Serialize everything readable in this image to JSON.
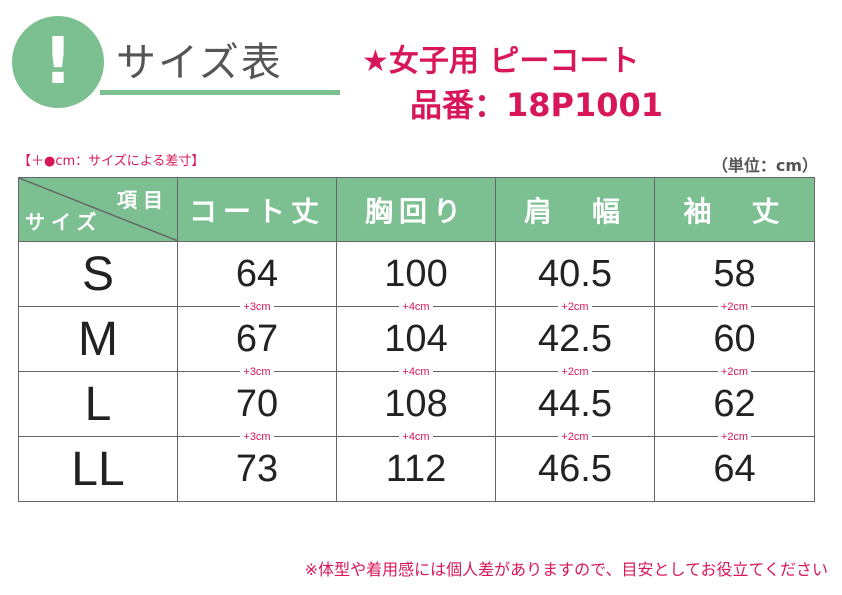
{
  "badge": "!",
  "title": "サイズ表",
  "product": "★女子用 ピーコート",
  "code": "品番：18P1001",
  "note_top": "【＋●cm：サイズによる差寸】",
  "unit": "（単位：cm）",
  "header": {
    "corner_item": "項目",
    "corner_size": "サイズ",
    "cols": [
      "コート丈",
      "胸回り",
      "肩　幅",
      "袖　丈"
    ]
  },
  "rows": [
    {
      "size": "S",
      "values": [
        "64",
        "100",
        "40.5",
        "58"
      ],
      "diffs": [
        "+3cm",
        "+4cm",
        "+2cm",
        "+2cm"
      ]
    },
    {
      "size": "M",
      "values": [
        "67",
        "104",
        "42.5",
        "60"
      ],
      "diffs": [
        "+3cm",
        "+4cm",
        "+2cm",
        "+2cm"
      ]
    },
    {
      "size": "L",
      "values": [
        "70",
        "108",
        "44.5",
        "62"
      ],
      "diffs": [
        "+3cm",
        "+4cm",
        "+2cm",
        "+2cm"
      ]
    },
    {
      "size": "LL",
      "values": [
        "73",
        "112",
        "46.5",
        "64"
      ]
    }
  ],
  "note_bottom": "※体型や着用感には個人差がありますので、目安としてお役立てください",
  "colors": {
    "accent": "#7cc092",
    "highlight": "#d8175a"
  }
}
